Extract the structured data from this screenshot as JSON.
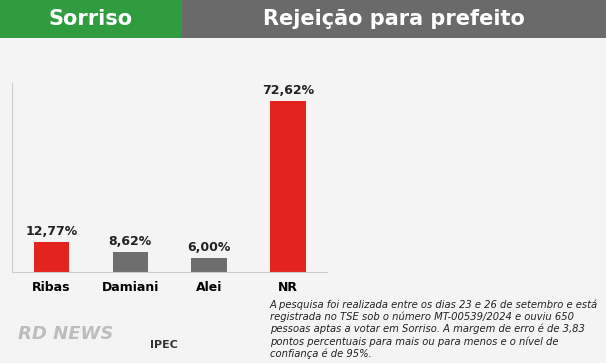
{
  "chart_data": {
    "type": "bar",
    "header_label": "Sorriso",
    "title": "Rejeição para prefeito",
    "categories": [
      "Ribas",
      "Damiani",
      "Alei",
      "NR"
    ],
    "values": [
      12.77,
      8.62,
      6.0,
      72.62
    ],
    "value_labels": [
      "12,77%",
      "8,62%",
      "6,00%",
      "72,62%"
    ],
    "colors": [
      "#e3231e",
      "#6e6e6e",
      "#6e6e6e",
      "#e3231e"
    ],
    "data_labels": true,
    "ylim": [
      0,
      80
    ],
    "yticks": [],
    "tick_labels": "x",
    "grid": false,
    "note": "A pesquisa foi realizada entre os dias 23 e 26 de setembro e está registrada no TSE sob o número MT-00539/2024 e ouviu 650 pessoas aptas a votar em Sorriso. A margem de erro é de 3,83 pontos percentuais para mais ou para menos e o nível de confiança é de 95%.",
    "sources": [
      "RD NEWS",
      "IPEC"
    ]
  }
}
